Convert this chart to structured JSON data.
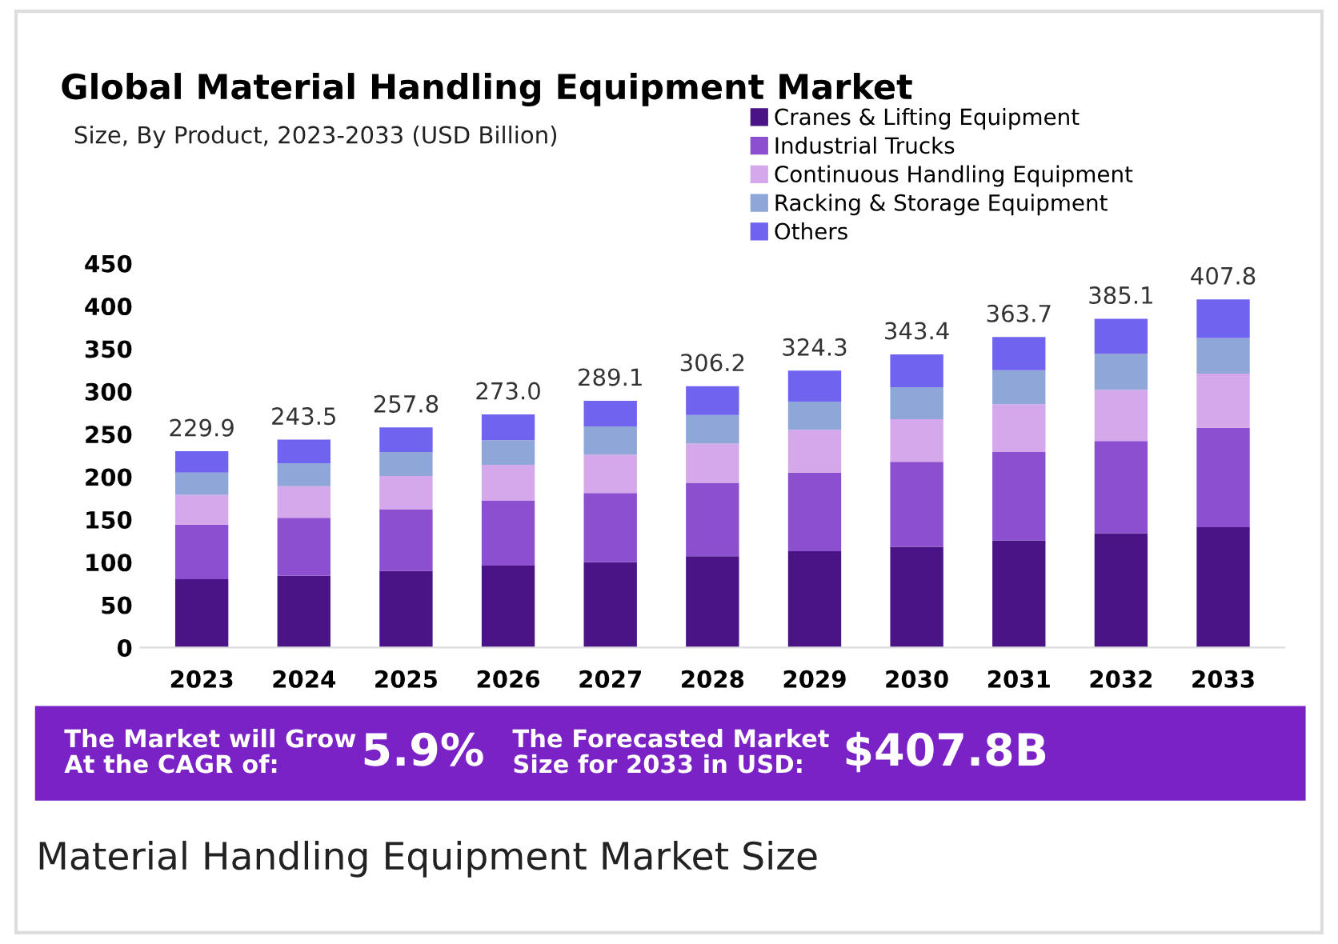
{
  "chart_data": {
    "type": "bar",
    "stacked": true,
    "title": "Global Material Handling Equipment Market",
    "subtitle": "Size, By Product, 2023-2033 (USD Billion)",
    "categories": [
      "2023",
      "2024",
      "2025",
      "2026",
      "2027",
      "2028",
      "2029",
      "2030",
      "2031",
      "2032",
      "2033"
    ],
    "series": [
      {
        "name": "Cranes & Lifting Equipment",
        "color": "#4a1486",
        "values": [
          80,
          84,
          90,
          96,
          100,
          107,
          113,
          118,
          125.6,
          134,
          141
        ]
      },
      {
        "name": "Industrial Trucks",
        "color": "#8b4fd0",
        "values": [
          64,
          68,
          72,
          76,
          81,
          86,
          92,
          99.5,
          103.4,
          108,
          116.5
        ]
      },
      {
        "name": "Continuous Handling Equipment",
        "color": "#d4a8ea",
        "values": [
          35,
          37,
          39,
          42,
          45,
          46,
          50,
          50,
          56,
          60,
          63.5
        ]
      },
      {
        "name": "Racking & Storage Equipment",
        "color": "#8ea6d8",
        "values": [
          26,
          27,
          28,
          29,
          33,
          33.5,
          33,
          37.5,
          40,
          42,
          41.5
        ]
      },
      {
        "name": "Others",
        "color": "#6f63f0",
        "values": [
          24.9,
          27.5,
          28.8,
          30,
          30.1,
          33.7,
          36.3,
          38.4,
          38.7,
          41.1,
          45.3
        ]
      }
    ],
    "totals": [
      "229.9",
      "243.5",
      "257.8",
      "273.0",
      "289.1",
      "306.2",
      "324.3",
      "343.4",
      "363.7",
      "385.1",
      "407.8"
    ],
    "ylim": [
      0,
      450
    ],
    "yticks": [
      0,
      50,
      100,
      150,
      200,
      250,
      300,
      350,
      400,
      450
    ],
    "grid": false,
    "legend": "top right",
    "annotations": [
      "The Market will Grow\nAt the CAGR of:",
      "5.9%",
      "The Forecasted Market\nSize for 2033 in USD:",
      "$407.8B",
      "Material Handling Equipment Market Size"
    ]
  }
}
